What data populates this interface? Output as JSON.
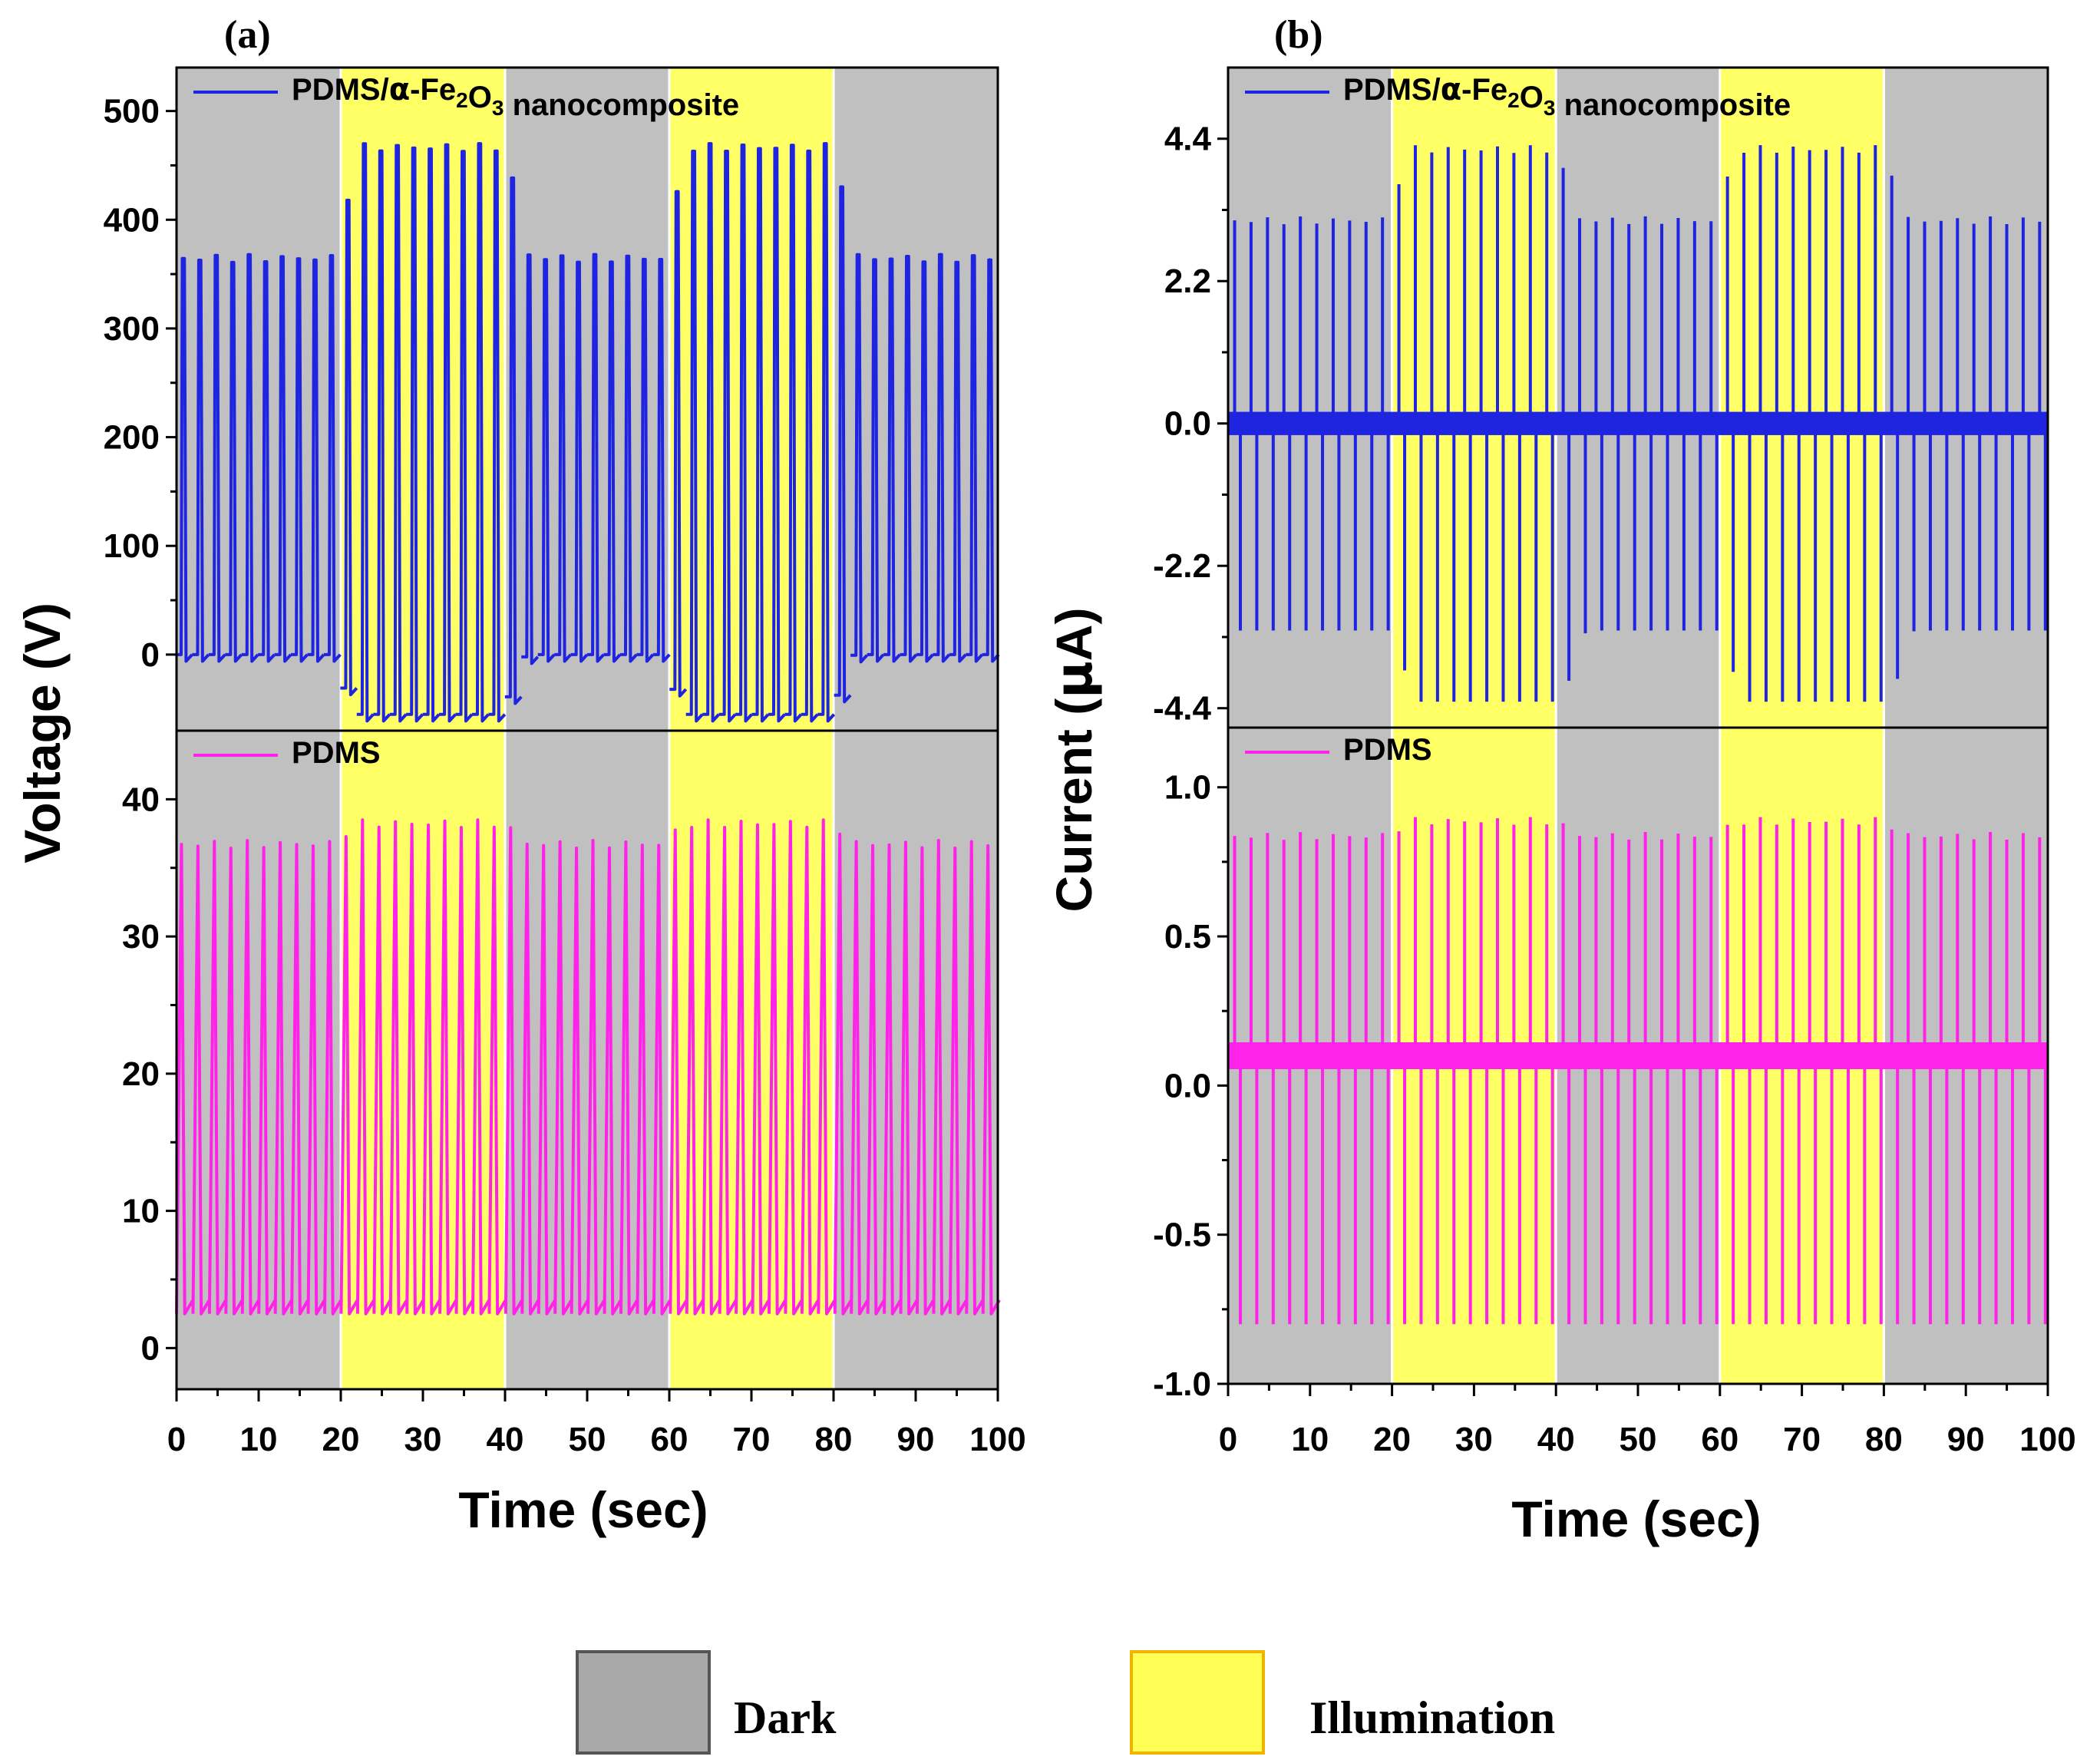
{
  "colors": {
    "dark_region": "#c0c0c0",
    "illumination_region": "#ffff66",
    "nanocomposite_series": "#1f24e0",
    "pdms_series": "#ff22e8",
    "axis": "#000000"
  },
  "labels": {
    "panel_a": "(a)",
    "panel_b": "(b)",
    "x_title": "Time (sec)",
    "voltage_title": "Voltage (V)",
    "current_title_prefix": "Current (",
    "current_title_mu": "μ",
    "current_title_suffix": "A)",
    "legend_nano_prefix": "PDMS/",
    "legend_nano_alpha": "α",
    "legend_nano_fe": "-Fe",
    "legend_nano_sub1": "2",
    "legend_nano_o": "O",
    "legend_nano_sub2": "3",
    "legend_nano_suffix": " nanocomposite",
    "legend_pdms": "PDMS",
    "key_dark": "Dark",
    "key_illumination": "Illumination"
  },
  "chart_data": [
    {
      "type": "line",
      "panel": "(a)",
      "xlabel": "Time (sec)",
      "ylabel": "Voltage (V)",
      "xlim": [
        0,
        100
      ],
      "x_ticks": [
        "0",
        "10",
        "20",
        "30",
        "40",
        "50",
        "60",
        "70",
        "80",
        "90",
        "100"
      ],
      "regions": [
        {
          "label": "Dark",
          "from": 0,
          "to": 20
        },
        {
          "label": "Illumination",
          "from": 20,
          "to": 40
        },
        {
          "label": "Dark",
          "from": 40,
          "to": 60
        },
        {
          "label": "Illumination",
          "from": 60,
          "to": 80
        },
        {
          "label": "Dark",
          "from": 80,
          "to": 100
        }
      ],
      "subplots": [
        {
          "series_name": "PDMS/α-Fe2O3 nanocomposite",
          "ylim": [
            -70,
            540
          ],
          "y_ticks": [
            "0",
            "100",
            "200",
            "300",
            "400",
            "500"
          ],
          "pulse_count": 50,
          "dark_peak": 368,
          "dark_trough": 0,
          "illum_peak": 470,
          "illum_trough": -55
        },
        {
          "series_name": "PDMS",
          "ylim": [
            -3,
            45
          ],
          "y_ticks": [
            "0",
            "10",
            "20",
            "30",
            "40"
          ],
          "pulse_count": 50,
          "dark_peak": 37,
          "dark_trough": 2.5,
          "illum_peak": 38.5,
          "illum_trough": 2.5
        }
      ]
    },
    {
      "type": "line",
      "panel": "(b)",
      "xlabel": "Time (sec)",
      "ylabel": "Current (μA)",
      "xlim": [
        0,
        100
      ],
      "x_ticks": [
        "0",
        "10",
        "20",
        "30",
        "40",
        "50",
        "60",
        "70",
        "80",
        "90",
        "100"
      ],
      "regions": [
        {
          "label": "Dark",
          "from": 0,
          "to": 20
        },
        {
          "label": "Illumination",
          "from": 20,
          "to": 40
        },
        {
          "label": "Dark",
          "from": 40,
          "to": 60
        },
        {
          "label": "Illumination",
          "from": 60,
          "to": 80
        },
        {
          "label": "Dark",
          "from": 80,
          "to": 100
        }
      ],
      "subplots": [
        {
          "series_name": "PDMS/α-Fe2O3 nanocomposite",
          "ylim": [
            -4.7,
            5.5
          ],
          "y_ticks": [
            "-4.4",
            "-2.2",
            "0.0",
            "2.2",
            "4.4"
          ],
          "pulse_count": 50,
          "dark_peak": 3.2,
          "dark_trough": -3.2,
          "illum_peak": 4.3,
          "illum_trough": -4.3
        },
        {
          "series_name": "PDMS",
          "ylim": [
            -1.0,
            1.2
          ],
          "y_ticks": [
            "-1.0",
            "-0.5",
            "0.0",
            "0.5",
            "1.0"
          ],
          "y_ticks_values": [
            -1.0,
            -0.5,
            0.0,
            0.5,
            1.0
          ],
          "pulse_count": 50,
          "baseline": 0.1,
          "dark_peak": 0.85,
          "dark_trough": -0.8,
          "illum_peak": 0.9,
          "illum_trough": -0.8
        }
      ]
    }
  ]
}
